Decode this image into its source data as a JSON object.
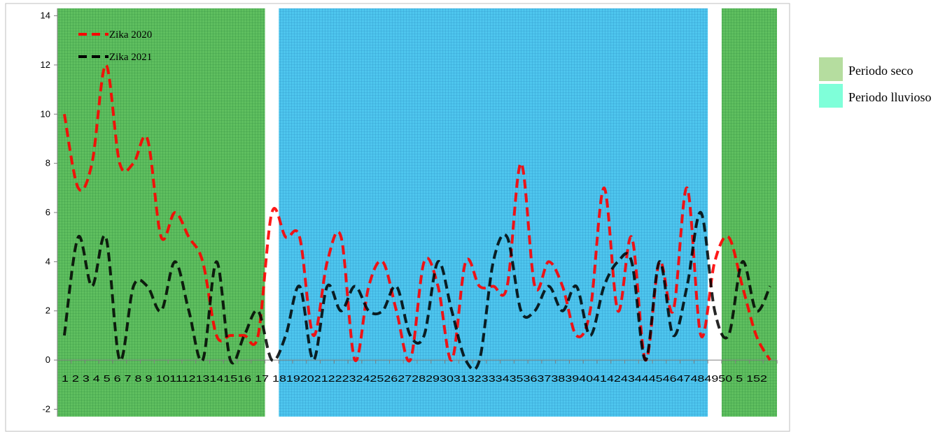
{
  "chart_data": {
    "type": "line",
    "y_ticks": [
      14,
      12,
      10,
      8,
      6,
      4,
      2,
      0,
      -2
    ],
    "ylim": [
      -2.3,
      14.3
    ],
    "x_categories": [
      "1",
      "2",
      "3",
      "4",
      "5",
      "6",
      "7",
      "8",
      "9",
      "10",
      "11",
      "12",
      "13",
      "14",
      "15",
      "16",
      "17",
      "18",
      "19",
      "20",
      "21",
      "22",
      "23",
      "24",
      "25",
      "26",
      "27",
      "28",
      "29",
      "30",
      "31",
      "32",
      "33",
      "34",
      "35",
      "36",
      "37",
      "38",
      "39",
      "40",
      "41",
      "42",
      "43",
      "44",
      "45",
      "46",
      "47",
      "48",
      "49",
      "50",
      "51",
      "52"
    ],
    "x_axis_text": "1 2 3 4 5 6 7 8 9 10111213141516 17 181920212223242526272829303132333435363738394041424344454647484950 5 152",
    "series": [
      {
        "name": "Zika 2020",
        "color": "#ff0000",
        "values": [
          10,
          7,
          8,
          12,
          8,
          8,
          9,
          5,
          6,
          5,
          4,
          1,
          1,
          1,
          1,
          6,
          5,
          5,
          1,
          4,
          5,
          0,
          3,
          4,
          2,
          0,
          4,
          3,
          0,
          4,
          3,
          3,
          3,
          8,
          3,
          4,
          3,
          1,
          2,
          7,
          2,
          5,
          0,
          4,
          2,
          7,
          1,
          4,
          5,
          3,
          1,
          0
        ]
      },
      {
        "name": "Zika 2021",
        "color": "#000000",
        "values": [
          1,
          5,
          3,
          5,
          0,
          3,
          3,
          2,
          4,
          2,
          0,
          4,
          0,
          1,
          2,
          0,
          1,
          3,
          0,
          3,
          2,
          3,
          2,
          2,
          3,
          1,
          1,
          4,
          2,
          0,
          0,
          4,
          5,
          2,
          2,
          3,
          2,
          3,
          1,
          3,
          4,
          4,
          0,
          4,
          1,
          3,
          6,
          2,
          1,
          4,
          2,
          3
        ]
      }
    ],
    "shaded_regions": [
      {
        "start": 1,
        "end": 15,
        "period": "dry",
        "color": "#4caf50"
      },
      {
        "start": 17,
        "end": 47,
        "period": "rainy",
        "color": "#29b6f6"
      },
      {
        "start": 49,
        "end": 52,
        "period": "dry",
        "color": "#4caf50"
      }
    ]
  },
  "legend_inner": [
    "Zika 2020",
    "Zika 2021"
  ],
  "legend_side": [
    {
      "label": "Periodo seco",
      "color": "#b5dd9f"
    },
    {
      "label": "Periodo lluvioso",
      "color": "#7fffd9"
    }
  ]
}
